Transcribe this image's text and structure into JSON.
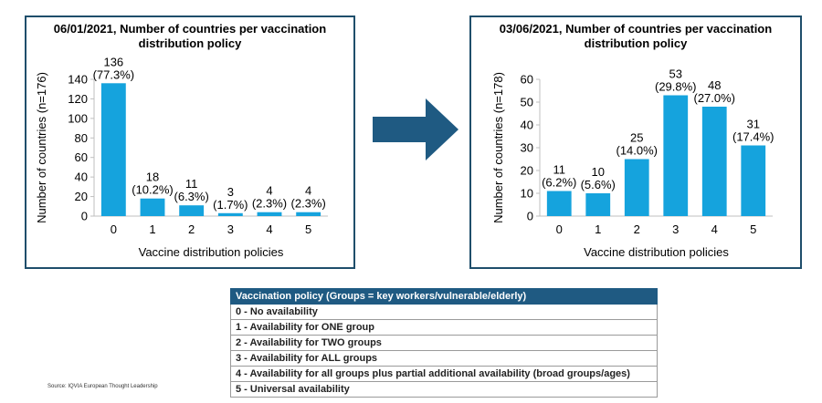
{
  "chart_data": [
    {
      "type": "bar",
      "title": "06/01/2021, Number of countries per vaccination distribution policy",
      "xlabel": "Vaccine distribution policies",
      "ylabel": "Number of countries (n=176)",
      "categories": [
        "0",
        "1",
        "2",
        "3",
        "4",
        "5"
      ],
      "values": [
        136,
        18,
        11,
        3,
        4,
        4
      ],
      "labels": [
        "(77.3%)",
        "(10.2%)",
        "(6.3%)",
        "(1.7%)",
        "(2.3%)",
        "(2.3%)"
      ],
      "ylim": [
        0,
        140
      ],
      "yticks": [
        0,
        20,
        40,
        60,
        80,
        100,
        120,
        140
      ],
      "grid": false,
      "color": "#15a3dd"
    },
    {
      "type": "bar",
      "title": "03/06/2021, Number of countries per vaccination distribution policy",
      "xlabel": "Vaccine distribution policies",
      "ylabel": "Number of countries (n=178)",
      "categories": [
        "0",
        "1",
        "2",
        "3",
        "4",
        "5"
      ],
      "values": [
        11,
        10,
        25,
        53,
        48,
        31
      ],
      "labels": [
        "(6.2%)",
        "(5.6%)",
        "(14.0%)",
        "(29.8%)",
        "(27.0%)",
        "(17.4%)"
      ],
      "ylim": [
        0,
        60
      ],
      "yticks": [
        0,
        10,
        20,
        30,
        40,
        50,
        60
      ],
      "grid": false,
      "color": "#15a3dd"
    }
  ],
  "legend_table": {
    "header": "Vaccination policy (Groups = key workers/vulnerable/elderly)",
    "rows": [
      "0 - No availability",
      "1 - Availability for ONE group",
      "2 - Availability for TWO groups",
      "3 - Availability for ALL groups",
      "4 - Availability for all groups plus partial additional availability (broad groups/ages)",
      "5 - Universal availability"
    ]
  },
  "source": "Source: IQVIA European Thought Leadership",
  "colors": {
    "bar": "#15a3dd",
    "panel_border": "#1f4e6b",
    "arrow": "#1f5a82",
    "table_header": "#1f5a82"
  }
}
